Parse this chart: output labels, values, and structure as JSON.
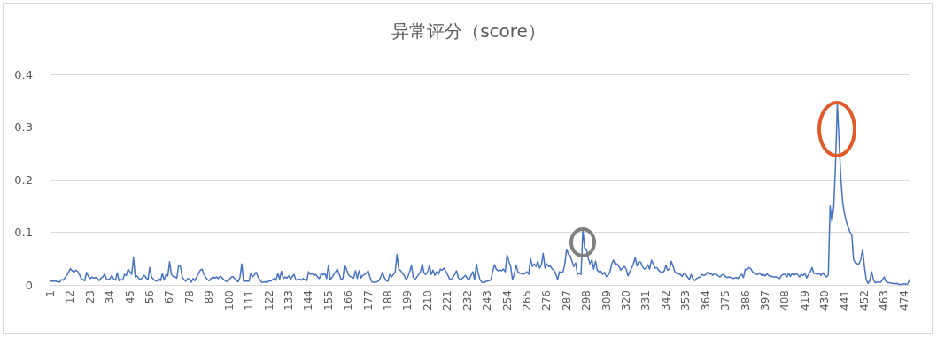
{
  "chart_data": {
    "type": "line",
    "title": "异常评分（score）",
    "categories": [
      "1",
      null,
      null,
      null,
      null,
      null,
      null,
      null,
      null,
      null,
      null,
      "12",
      null,
      null,
      null,
      null,
      null,
      null,
      null,
      null,
      null,
      null,
      "23",
      null,
      null,
      null,
      null,
      null,
      null,
      null,
      null,
      null,
      null,
      "34",
      null,
      null,
      null,
      null,
      null,
      null,
      null,
      null,
      null,
      null,
      "45",
      null,
      null,
      null,
      null,
      null,
      null,
      null,
      null,
      null,
      null,
      "56",
      null,
      null,
      null,
      null,
      null,
      null,
      null,
      null,
      null,
      null,
      "67",
      null,
      null,
      null,
      null,
      null,
      null,
      null,
      null,
      null,
      null,
      "78",
      null,
      null,
      null,
      null,
      null,
      null,
      null,
      null,
      null,
      null,
      "89",
      null,
      null,
      null,
      null,
      null,
      null,
      null,
      null,
      null,
      null,
      "100",
      null,
      null,
      null,
      null,
      null,
      null,
      null,
      null,
      null,
      null,
      "111",
      null,
      null,
      null,
      null,
      null,
      null,
      null,
      null,
      null,
      null,
      "122",
      null,
      null,
      null,
      null,
      null,
      null,
      null,
      null,
      null,
      null,
      "133",
      null,
      null,
      null,
      null,
      null,
      null,
      null,
      null,
      null,
      null,
      "144",
      null,
      null,
      null,
      null,
      null,
      null,
      null,
      null,
      null,
      null,
      "155",
      null,
      null,
      null,
      null,
      null,
      null,
      null,
      null,
      null,
      null,
      "166",
      null,
      null,
      null,
      null,
      null,
      null,
      null,
      null,
      null,
      null,
      "177",
      null,
      null,
      null,
      null,
      null,
      null,
      null,
      null,
      null,
      null,
      "188",
      null,
      null,
      null,
      null,
      null,
      null,
      null,
      null,
      null,
      null,
      "199",
      null,
      null,
      null,
      null,
      null,
      null,
      null,
      null,
      null,
      null,
      "210",
      null,
      null,
      null,
      null,
      null,
      null,
      null,
      null,
      null,
      null,
      "221",
      null,
      null,
      null,
      null,
      null,
      null,
      null,
      null,
      null,
      null,
      "232",
      null,
      null,
      null,
      null,
      null,
      null,
      null,
      null,
      null,
      null,
      "243",
      null,
      null,
      null,
      null,
      null,
      null,
      null,
      null,
      null,
      null,
      "254",
      null,
      null,
      null,
      null,
      null,
      null,
      null,
      null,
      null,
      null,
      "265",
      null,
      null,
      null,
      null,
      null,
      null,
      null,
      null,
      null,
      null,
      "276",
      null,
      null,
      null,
      null,
      null,
      null,
      null,
      null,
      null,
      null,
      "287",
      null,
      null,
      null,
      null,
      null,
      null,
      null,
      null,
      null,
      null,
      "298",
      null,
      null,
      null,
      null,
      null,
      null,
      null,
      null,
      null,
      null,
      "309",
      null,
      null,
      null,
      null,
      null,
      null,
      null,
      null,
      null,
      null,
      "320",
      null,
      null,
      null,
      null,
      null,
      null,
      null,
      null,
      null,
      null,
      "331",
      null,
      null,
      null,
      null,
      null,
      null,
      null,
      null,
      null,
      null,
      "342",
      null,
      null,
      null,
      null,
      null,
      null,
      null,
      null,
      null,
      null,
      "353",
      null,
      null,
      null,
      null,
      null,
      null,
      null,
      null,
      null,
      null,
      "364",
      null,
      null,
      null,
      null,
      null,
      null,
      null,
      null,
      null,
      null,
      "375",
      null,
      null,
      null,
      null,
      null,
      null,
      null,
      null,
      null,
      null,
      "386",
      null,
      null,
      null,
      null,
      null,
      null,
      null,
      null,
      null,
      null,
      "397",
      null,
      null,
      null,
      null,
      null,
      null,
      null,
      null,
      null,
      null,
      "408",
      null,
      null,
      null,
      null,
      null,
      null,
      null,
      null,
      null,
      null,
      "419",
      null,
      null,
      null,
      null,
      null,
      null,
      null,
      null,
      null,
      null,
      "430",
      null,
      null,
      null,
      null,
      null,
      null,
      null,
      null,
      null,
      null,
      "441",
      null,
      null,
      null,
      null,
      null,
      null,
      null,
      null,
      null,
      null,
      "452",
      null,
      null,
      null,
      null,
      null,
      null,
      null,
      null,
      null,
      null,
      "463",
      null,
      null,
      null,
      null,
      null,
      null,
      null,
      null,
      null,
      null,
      "474",
      null,
      null,
      null
    ],
    "series": [
      {
        "color": "#4472c4",
        "values": [
          0.007,
          0.007,
          0.007,
          0.007,
          0.006,
          0.005,
          0.01,
          0.009,
          0.013,
          0.018,
          0.024,
          0.031,
          0.027,
          0.024,
          0.028,
          0.026,
          0.02,
          0.012,
          0.01,
          0.008,
          0.024,
          0.016,
          0.012,
          0.015,
          0.013,
          0.014,
          0.012,
          0.008,
          0.013,
          0.015,
          0.021,
          0.011,
          0.01,
          0.012,
          0.018,
          0.011,
          0.009,
          0.023,
          0.008,
          0.01,
          0.009,
          0.02,
          0.018,
          0.03,
          0.025,
          0.02,
          0.052,
          0.015,
          0.017,
          0.012,
          0.01,
          0.014,
          0.018,
          0.013,
          0.01,
          0.033,
          0.015,
          0.011,
          0.008,
          0.007,
          0.012,
          0.008,
          0.022,
          0.009,
          0.02,
          0.017,
          0.044,
          0.02,
          0.016,
          0.015,
          0.013,
          0.037,
          0.035,
          0.015,
          0.01,
          0.007,
          0.012,
          0.011,
          0.005,
          0.012,
          0.008,
          0.015,
          0.021,
          0.028,
          0.03,
          0.02,
          0.015,
          0.01,
          0.008,
          0.012,
          0.015,
          0.013,
          0.015,
          0.012,
          0.016,
          0.014,
          0.01,
          0.008,
          0.006,
          0.01,
          0.014,
          0.016,
          0.012,
          0.008,
          0.006,
          0.014,
          0.04,
          0.007,
          0.007,
          0.007,
          0.007,
          0.022,
          0.015,
          0.019,
          0.024,
          0.015,
          0.01,
          0.005,
          0.005,
          0.006,
          0.004,
          0.008,
          0.007,
          0.01,
          0.012,
          0.009,
          0.022,
          0.011,
          0.026,
          0.012,
          0.015,
          0.013,
          0.017,
          0.011,
          0.016,
          0.02,
          0.009,
          0.01,
          0.011,
          0.009,
          0.012,
          0.01,
          0.008,
          0.025,
          0.02,
          0.022,
          0.018,
          0.02,
          0.015,
          0.012,
          0.021,
          0.019,
          0.022,
          0.012,
          0.038,
          0.01,
          0.014,
          0.02,
          0.025,
          0.03,
          0.02,
          0.01,
          0.012,
          0.038,
          0.03,
          0.02,
          0.016,
          0.015,
          0.013,
          0.027,
          0.012,
          0.027,
          0.013,
          0.018,
          0.02,
          0.022,
          0.027,
          0.015,
          0.006,
          0.005,
          0.005,
          0.006,
          0.008,
          0.015,
          0.024,
          0.014,
          0.008,
          0.007,
          0.02,
          0.015,
          0.02,
          0.024,
          0.058,
          0.03,
          0.027,
          0.022,
          0.018,
          0.01,
          0.015,
          0.025,
          0.037,
          0.015,
          0.01,
          0.015,
          0.02,
          0.025,
          0.04,
          0.022,
          0.02,
          0.025,
          0.037,
          0.02,
          0.028,
          0.018,
          0.025,
          0.02,
          0.03,
          0.028,
          0.032,
          0.026,
          0.02,
          0.012,
          0.01,
          0.015,
          0.02,
          0.027,
          0.013,
          0.01,
          0.012,
          0.015,
          0.018,
          0.012,
          0.01,
          0.018,
          0.025,
          0.01,
          0.04,
          0.022,
          0.01,
          0.005,
          0.004,
          0.006,
          0.007,
          0.008,
          0.009,
          0.025,
          0.038,
          0.03,
          0.027,
          0.028,
          0.027,
          0.03,
          0.025,
          0.057,
          0.045,
          0.035,
          0.01,
          0.02,
          0.038,
          0.025,
          0.022,
          0.022,
          0.02,
          0.022,
          0.025,
          0.02,
          0.05,
          0.035,
          0.04,
          0.035,
          0.045,
          0.032,
          0.038,
          0.06,
          0.032,
          0.04,
          0.035,
          0.036,
          0.03,
          0.028,
          0.02,
          0.01,
          0.025,
          0.024,
          0.025,
          0.04,
          0.068,
          0.058,
          0.055,
          0.045,
          0.035,
          0.042,
          0.02,
          0.022,
          0.02,
          0.105,
          0.07,
          0.068,
          0.05,
          0.04,
          0.048,
          0.03,
          0.045,
          0.028,
          0.025,
          0.026,
          0.02,
          0.024,
          0.016,
          0.018,
          0.025,
          0.04,
          0.047,
          0.038,
          0.04,
          0.035,
          0.028,
          0.032,
          0.035,
          0.03,
          0.017,
          0.025,
          0.032,
          0.04,
          0.052,
          0.036,
          0.044,
          0.043,
          0.035,
          0.03,
          0.032,
          0.038,
          0.03,
          0.047,
          0.04,
          0.032,
          0.033,
          0.028,
          0.025,
          0.024,
          0.026,
          0.037,
          0.028,
          0.03,
          0.045,
          0.035,
          0.025,
          0.022,
          0.021,
          0.02,
          0.016,
          0.022,
          0.02,
          0.015,
          0.01,
          0.02,
          0.012,
          0.008,
          0.012,
          0.014,
          0.015,
          0.02,
          0.018,
          0.019,
          0.024,
          0.02,
          0.022,
          0.018,
          0.022,
          0.02,
          0.017,
          0.015,
          0.019,
          0.02,
          0.016,
          0.014,
          0.015,
          0.014,
          0.012,
          0.013,
          0.014,
          0.012,
          0.018,
          0.02,
          0.014,
          0.03,
          0.029,
          0.033,
          0.031,
          0.025,
          0.022,
          0.02,
          0.02,
          0.023,
          0.018,
          0.02,
          0.017,
          0.021,
          0.018,
          0.016,
          0.016,
          0.015,
          0.015,
          0.014,
          0.012,
          0.018,
          0.02,
          0.02,
          0.015,
          0.022,
          0.016,
          0.022,
          0.018,
          0.021,
          0.02,
          0.015,
          0.02,
          0.018,
          0.022,
          0.013,
          0.02,
          0.025,
          0.033,
          0.022,
          0.022,
          0.02,
          0.022,
          0.018,
          0.023,
          0.018,
          0.015,
          0.019,
          0.15,
          0.12,
          0.148,
          0.23,
          0.345,
          0.27,
          0.2,
          0.155,
          0.135,
          0.12,
          0.11,
          0.1,
          0.095,
          0.048,
          0.042,
          0.04,
          0.04,
          0.048,
          0.068,
          0.035,
          0.01,
          0.003,
          0.008,
          0.025,
          0.01,
          0.004,
          0.005,
          0.006,
          0.005,
          0.01,
          0.015,
          0.006,
          0.004,
          0.004,
          0.003,
          0.003,
          0.002,
          0.003,
          0.001,
          0.001,
          0.001,
          0.002,
          0.001,
          0.002,
          0.01
        ]
      }
    ],
    "ylim": [
      0,
      0.4
    ],
    "yticks": [
      0,
      0.1,
      0.2,
      0.3,
      0.4
    ],
    "grid": "y",
    "marker": "none",
    "line_style": "solid"
  }
}
